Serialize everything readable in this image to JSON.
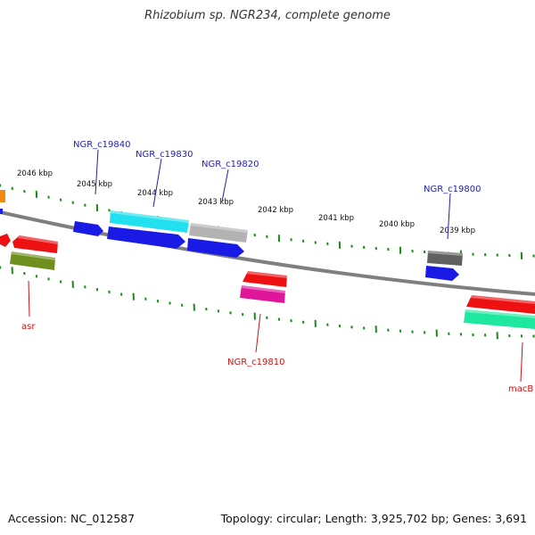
{
  "title": "Rhizobium sp. NGR234, complete genome",
  "footer": {
    "accession": "Accession: NC_012587",
    "stats": "Topology: circular; Length: 3,925,702 bp; Genes: 3,691"
  },
  "colors": {
    "backbone": "#7f7f7f",
    "tick": "#1a8a1a",
    "top_label": "#1f1fb0",
    "bottom_label": "#cc1111",
    "scale_text": "#111111"
  },
  "scale_labels": [
    {
      "kbp": 2046,
      "text": "2046 kbp"
    },
    {
      "kbp": 2045,
      "text": "2045 kbp"
    },
    {
      "kbp": 2044,
      "text": "2044 kbp"
    },
    {
      "kbp": 2043,
      "text": "2043 kbp"
    },
    {
      "kbp": 2042,
      "text": "2042 kbp"
    },
    {
      "kbp": 2041,
      "text": "2041 kbp"
    },
    {
      "kbp": 2040,
      "text": "2040 kbp"
    },
    {
      "kbp": 2039,
      "text": "2039 kbp"
    }
  ],
  "gene_labels": [
    {
      "text": "NGR_c19840",
      "strand": "forward"
    },
    {
      "text": "NGR_c19830",
      "strand": "forward"
    },
    {
      "text": "NGR_c19820",
      "strand": "forward"
    },
    {
      "text": "NGR_c19800",
      "strand": "forward"
    },
    {
      "text": "asr",
      "strand": "reverse"
    },
    {
      "text": "NGR_c19810",
      "strand": "reverse"
    },
    {
      "text": "macB",
      "strand": "reverse"
    }
  ],
  "features": [
    {
      "name": "orange-feature",
      "color": "#f08a10"
    },
    {
      "name": "blue-feature-top-left",
      "color": "#1a1ae6"
    },
    {
      "name": "red-arrow-left",
      "color": "#ee1111"
    },
    {
      "name": "red-feature",
      "color": "#ee1111"
    },
    {
      "name": "olive-feature",
      "color": "#6f8f1f"
    },
    {
      "name": "NGR_c19840-arrow",
      "color": "#1a1ae6"
    },
    {
      "name": "cyan-feature",
      "color": "#22e0ee"
    },
    {
      "name": "blue-long-arrow",
      "color": "#1a1ae6"
    },
    {
      "name": "gray-feature",
      "color": "#b3b3b3"
    },
    {
      "name": "blue-arrow-mid",
      "color": "#1a1ae6"
    },
    {
      "name": "red-feature-mid",
      "color": "#ee1111"
    },
    {
      "name": "pink-feature",
      "color": "#e0169a"
    },
    {
      "name": "dark-gray-feature",
      "color": "#606060"
    },
    {
      "name": "blue-arrow-right",
      "color": "#1a1ae6"
    },
    {
      "name": "red-feature-right",
      "color": "#ee1111"
    },
    {
      "name": "green-feature-right",
      "color": "#1ee8a0"
    }
  ]
}
